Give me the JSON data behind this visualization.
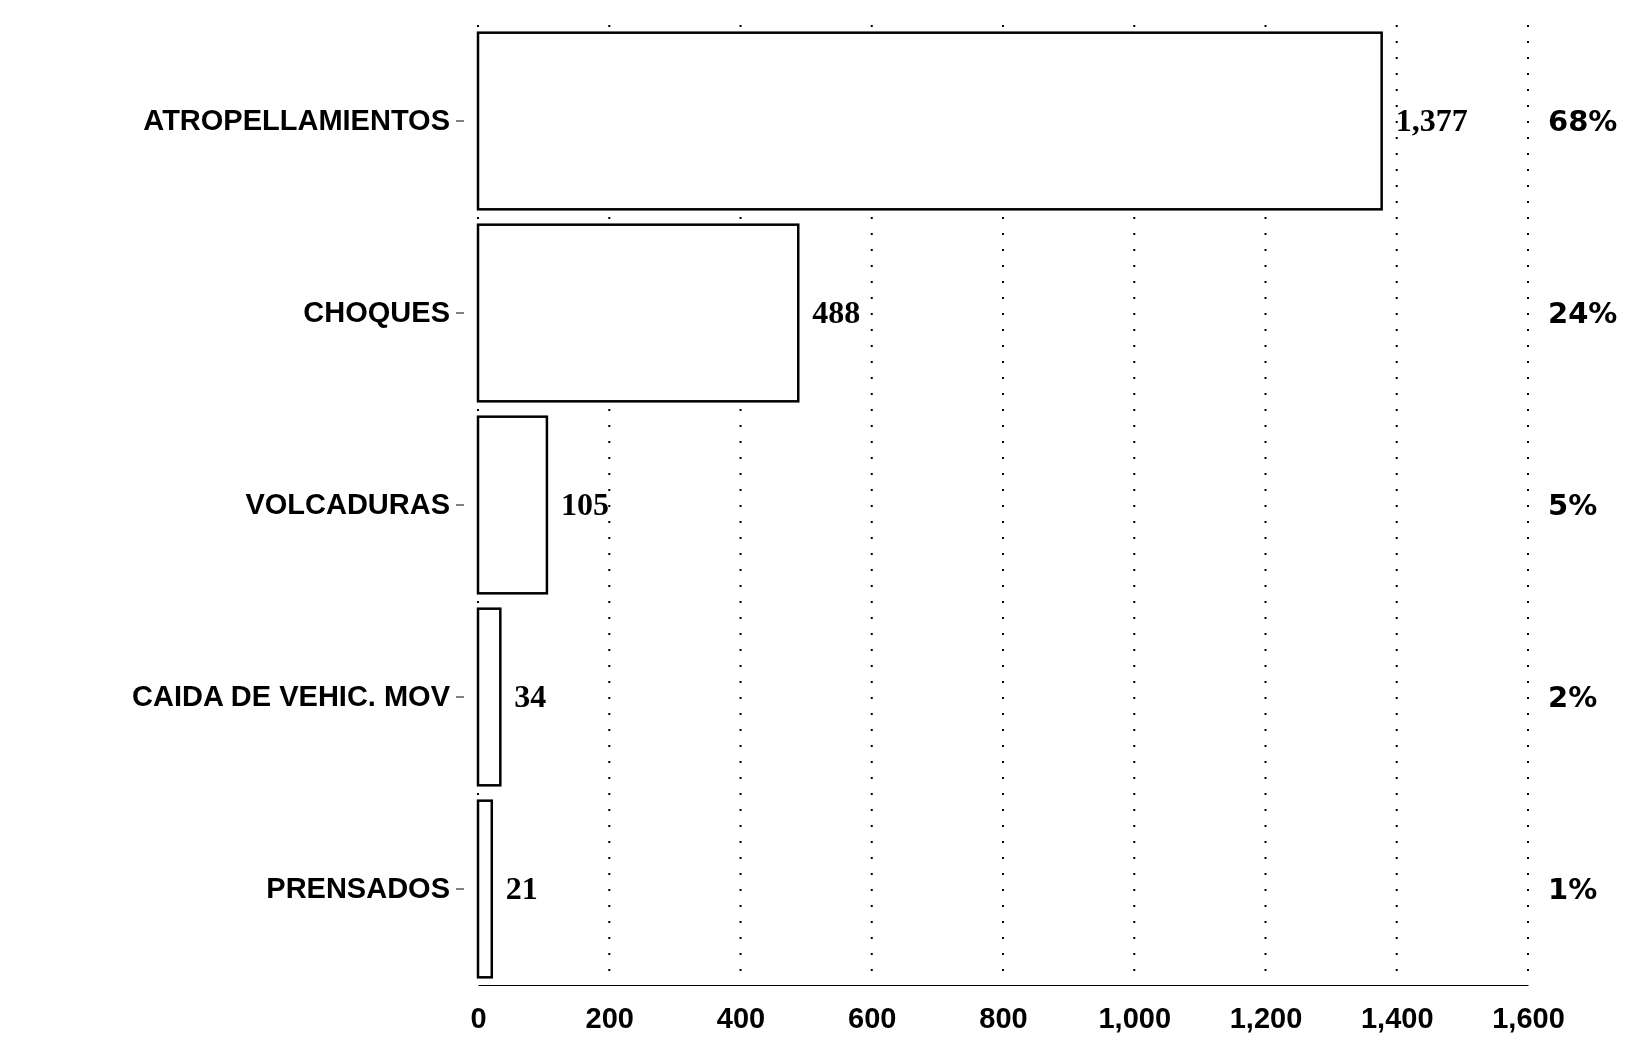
{
  "chart_data": {
    "type": "bar",
    "orientation": "horizontal",
    "categories": [
      "ATROPELLAMIENTOS",
      "CHOQUES",
      "VOLCADURAS",
      "CAIDA DE VEHIC. MOV",
      "PRENSADOS"
    ],
    "values": [
      1377,
      488,
      105,
      34,
      21
    ],
    "value_labels": [
      "1,377",
      "488",
      "105",
      "34",
      "21"
    ],
    "color": "#ffffff",
    "xlim": [
      0,
      1600
    ],
    "xticks": [
      0,
      200,
      {
        "value": 400,
        "label": "400"
      },
      600,
      800,
      {
        "value": 1000,
        "label": "1,000"
      },
      {
        "value": 1200,
        "label": "1,200"
      },
      {
        "value": 1400,
        "label": "1,400"
      },
      {
        "value": 1600,
        "label": "1,600"
      }
    ],
    "grid": "x",
    "annotations": [
      "68%",
      "24%",
      "5%",
      "2%",
      "1%"
    ]
  }
}
